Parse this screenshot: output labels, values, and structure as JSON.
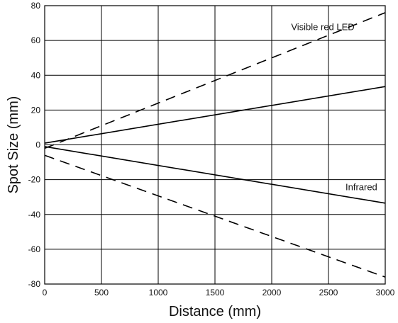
{
  "chart_data": {
    "type": "line",
    "xlabel": "Distance (mm)",
    "ylabel": "Spot Size (mm)",
    "xlim": [
      0,
      3000
    ],
    "ylim": [
      -80,
      80
    ],
    "x_ticks": [
      0,
      500,
      1000,
      1500,
      2000,
      2500,
      3000
    ],
    "y_ticks": [
      -80,
      -60,
      -40,
      -20,
      0,
      20,
      40,
      60,
      80
    ],
    "grid": true,
    "series": [
      {
        "style": "dashed",
        "x": [
          0,
          3000
        ],
        "y": [
          -2,
          76
        ]
      },
      {
        "style": "solid",
        "x": [
          0,
          3000
        ],
        "y": [
          1,
          33.5
        ]
      },
      {
        "style": "solid",
        "x": [
          0,
          3000
        ],
        "y": [
          -1,
          -33.5
        ]
      },
      {
        "style": "dashed",
        "x": [
          0,
          3000
        ],
        "y": [
          -6,
          -76
        ]
      }
    ],
    "annotations": [
      {
        "text": "Visible red LED",
        "x": 2450,
        "y": 66
      },
      {
        "text": "Infrared",
        "x": 2790,
        "y": -26
      }
    ]
  }
}
